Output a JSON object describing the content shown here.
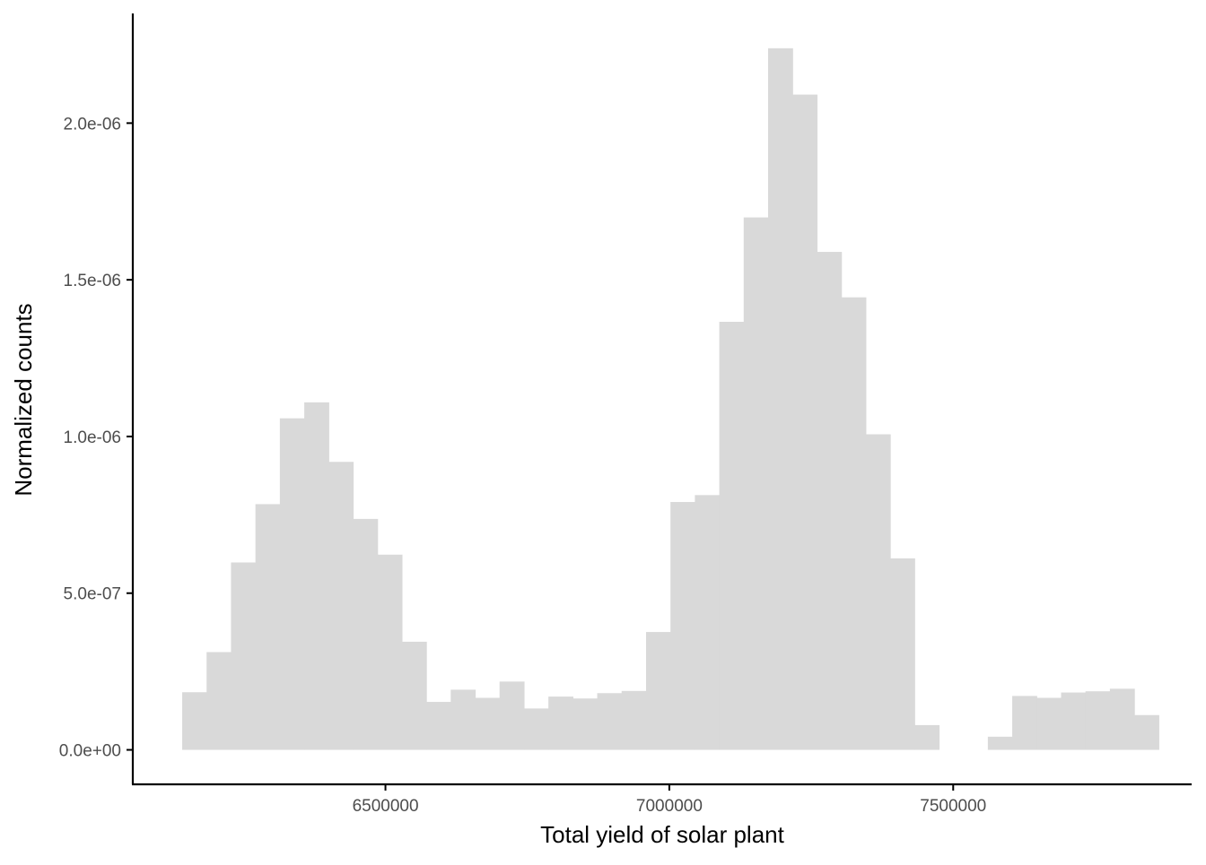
{
  "chart_data": {
    "type": "bar",
    "title": "",
    "xlabel": "Total yield of solar plant",
    "ylabel": "Normalized counts",
    "xlim": [
      6055000,
      7920000
    ],
    "ylim": [
      -1.1e-07,
      2.35e-06
    ],
    "x_ticks": [
      {
        "value": 6500000,
        "label": "6500000"
      },
      {
        "value": 7000000,
        "label": "7000000"
      },
      {
        "value": 7500000,
        "label": "7500000"
      }
    ],
    "y_ticks": [
      {
        "value": 0,
        "label": "0.0e+00"
      },
      {
        "value": 5e-07,
        "label": "5.0e-07"
      },
      {
        "value": 1e-06,
        "label": "1.0e-06"
      },
      {
        "value": 1.5e-06,
        "label": "1.5e-06"
      },
      {
        "value": 2e-06,
        "label": "2.0e-06"
      }
    ],
    "bin_start": 6142000,
    "bin_width": 43000,
    "values": [
      1.84e-07,
      3.12e-07,
      5.98e-07,
      7.84e-07,
      1.058e-06,
      1.109e-06,
      9.19e-07,
      7.37e-07,
      6.23e-07,
      3.45e-07,
      1.53e-07,
      1.92e-07,
      1.66e-07,
      2.18e-07,
      1.32e-07,
      1.7e-07,
      1.64e-07,
      1.81e-07,
      1.88e-07,
      3.76e-07,
      7.91e-07,
      8.13e-07,
      1.366e-06,
      1.699e-06,
      2.239e-06,
      2.091e-06,
      1.589e-06,
      1.444e-06,
      1.007e-06,
      6.11e-07,
      7.9e-08,
      0,
      0,
      4.2e-08,
      1.72e-07,
      1.66e-07,
      1.83e-07,
      1.87e-07,
      1.95e-07,
      1.11e-07
    ],
    "bar_color": "#d9d9d9",
    "axis_color": "#000000",
    "grid": false,
    "legend": "none"
  }
}
